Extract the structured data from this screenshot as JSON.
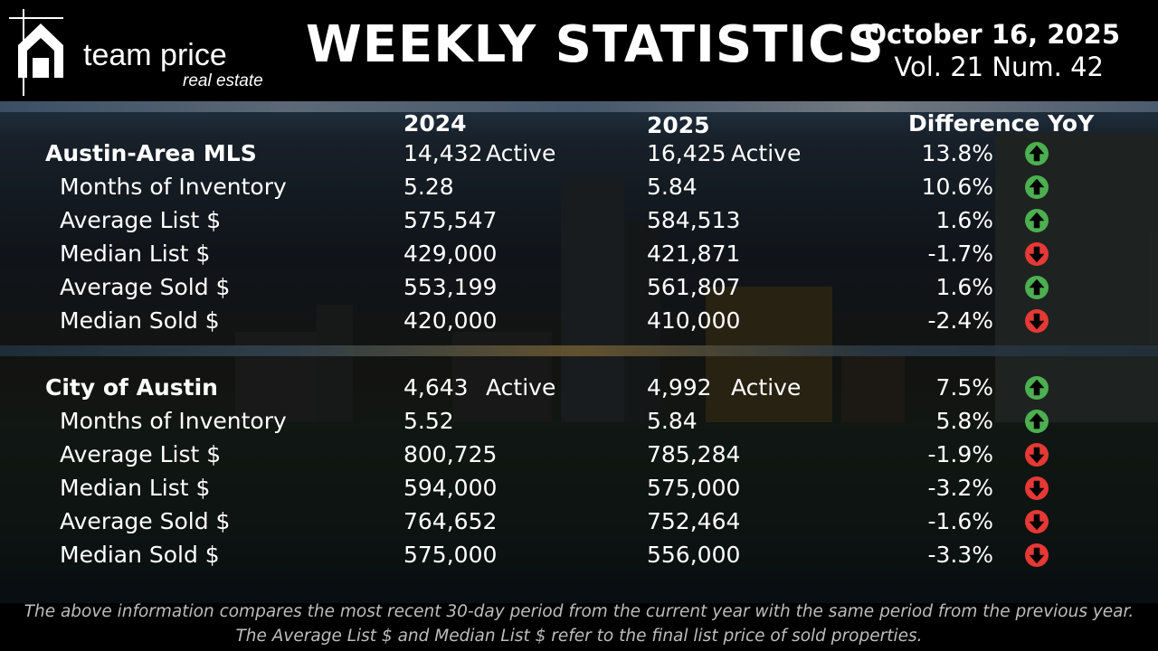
{
  "header": {
    "brand_main": "team price",
    "brand_sub": "real estate",
    "title": "WEEKLY STATISTICS",
    "date": "October 16, 2025",
    "volume": "Vol. 21 Num. 42"
  },
  "columns": {
    "y2024": "2024",
    "y2025": "2025",
    "diff": "Difference YoY"
  },
  "active_label": "Active",
  "colors": {
    "up": "#4caf50",
    "down": "#e53935",
    "text": "#ffffff",
    "footer": "#bdbdbd"
  },
  "sections": [
    {
      "name": "Austin-Area MLS",
      "active_2024": "14,432",
      "active_2025": "16,425",
      "active_diff": "13.8%",
      "active_trend": "up",
      "rows": [
        {
          "label": "Months of Inventory",
          "v2024": "5.28",
          "v2025": "5.84",
          "diff": "10.6%",
          "trend": "up"
        },
        {
          "label": "Average List $",
          "v2024": "575,547",
          "v2025": "584,513",
          "diff": "1.6%",
          "trend": "up"
        },
        {
          "label": "Median List $",
          "v2024": "429,000",
          "v2025": "421,871",
          "diff": "-1.7%",
          "trend": "down"
        },
        {
          "label": "Average Sold $",
          "v2024": "553,199",
          "v2025": "561,807",
          "diff": "1.6%",
          "trend": "up"
        },
        {
          "label": "Median Sold $",
          "v2024": "420,000",
          "v2025": "410,000",
          "diff": "-2.4%",
          "trend": "down"
        }
      ]
    },
    {
      "name": "City of Austin",
      "active_2024": "4,643",
      "active_2025": "4,992",
      "active_diff": "7.5%",
      "active_trend": "up",
      "rows": [
        {
          "label": "Months of Inventory",
          "v2024": "5.52",
          "v2025": "5.84",
          "diff": "5.8%",
          "trend": "up"
        },
        {
          "label": "Average List $",
          "v2024": "800,725",
          "v2025": "785,284",
          "diff": "-1.9%",
          "trend": "down"
        },
        {
          "label": "Median List $",
          "v2024": "594,000",
          "v2025": "575,000",
          "diff": "-3.2%",
          "trend": "down"
        },
        {
          "label": "Average Sold $",
          "v2024": "764,652",
          "v2025": "752,464",
          "diff": "-1.6%",
          "trend": "down"
        },
        {
          "label": "Median Sold $",
          "v2024": "575,000",
          "v2025": "556,000",
          "diff": "-3.3%",
          "trend": "down"
        }
      ]
    }
  ],
  "footer": "The above information compares the most recent 30-day period from the current year with the same period from the previous year. The Average List $ and Median List $ refer to the final list price of sold properties."
}
